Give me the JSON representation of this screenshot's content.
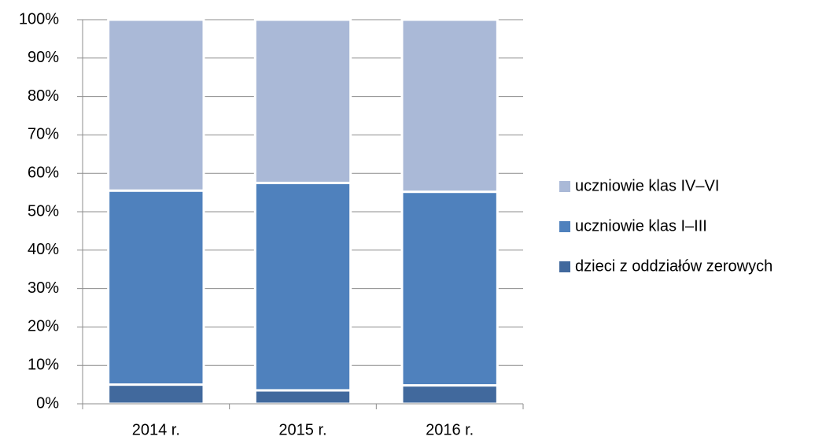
{
  "chart_data": {
    "type": "stacked_bar",
    "categories": [
      "2014 r.",
      "2015 r.",
      "2016 r."
    ],
    "series": [
      {
        "name": "dzieci z oddziałów zerowych",
        "color": "#41699d",
        "values": [
          5,
          3.5,
          4.8
        ]
      },
      {
        "name": "uczniowie klas I–III",
        "color": "#4f81bd",
        "values": [
          50.5,
          54,
          50.4
        ]
      },
      {
        "name": "uczniowie klas IV–VI",
        "color": "#aab9d7",
        "values": [
          44.5,
          42.5,
          44.8
        ]
      }
    ],
    "ylim": [
      0,
      100
    ],
    "yticks": [
      {
        "value": 0,
        "label": "0%"
      },
      {
        "value": 10,
        "label": "10%"
      },
      {
        "value": 20,
        "label": "20%"
      },
      {
        "value": 30,
        "label": "30%"
      },
      {
        "value": 40,
        "label": "40%"
      },
      {
        "value": 50,
        "label": "50%"
      },
      {
        "value": 60,
        "label": "60%"
      },
      {
        "value": 70,
        "label": "70%"
      },
      {
        "value": 80,
        "label": "80%"
      },
      {
        "value": 90,
        "label": "90%"
      },
      {
        "value": 100,
        "label": "100%"
      }
    ],
    "grid": true,
    "legend": "right"
  }
}
